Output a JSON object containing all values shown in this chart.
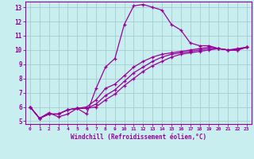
{
  "xlabel": "Windchill (Refroidissement éolien,°C)",
  "bg_color": "#c8eef0",
  "line_color": "#990099",
  "grid_color": "#a0c8c8",
  "xlim": [
    -0.5,
    23.5
  ],
  "ylim": [
    4.8,
    13.4
  ],
  "xticks": [
    0,
    1,
    2,
    3,
    4,
    5,
    6,
    7,
    8,
    9,
    10,
    11,
    12,
    13,
    14,
    15,
    16,
    17,
    18,
    19,
    20,
    21,
    22,
    23
  ],
  "yticks": [
    5,
    6,
    7,
    8,
    9,
    10,
    11,
    12,
    13
  ],
  "lines": [
    [
      6.0,
      5.2,
      5.6,
      5.3,
      5.5,
      5.9,
      5.5,
      7.3,
      8.8,
      9.4,
      11.8,
      13.1,
      13.2,
      13.0,
      12.8,
      11.8,
      11.4,
      10.5,
      10.3,
      10.3,
      10.1,
      10.0,
      10.1,
      10.2
    ],
    [
      6.0,
      5.2,
      5.5,
      5.5,
      5.8,
      5.9,
      6.0,
      6.5,
      7.3,
      7.6,
      8.2,
      8.8,
      9.2,
      9.5,
      9.7,
      9.8,
      9.9,
      10.0,
      10.1,
      10.2,
      10.1,
      10.0,
      10.0,
      10.2
    ],
    [
      6.0,
      5.2,
      5.5,
      5.5,
      5.8,
      5.9,
      5.9,
      6.2,
      6.8,
      7.2,
      7.8,
      8.4,
      8.8,
      9.2,
      9.5,
      9.7,
      9.8,
      9.9,
      10.0,
      10.1,
      10.1,
      10.0,
      10.0,
      10.2
    ],
    [
      6.0,
      5.2,
      5.5,
      5.5,
      5.8,
      5.9,
      5.9,
      6.0,
      6.5,
      6.9,
      7.5,
      8.0,
      8.5,
      8.9,
      9.2,
      9.5,
      9.7,
      9.8,
      9.9,
      10.0,
      10.1,
      10.0,
      10.0,
      10.2
    ]
  ]
}
